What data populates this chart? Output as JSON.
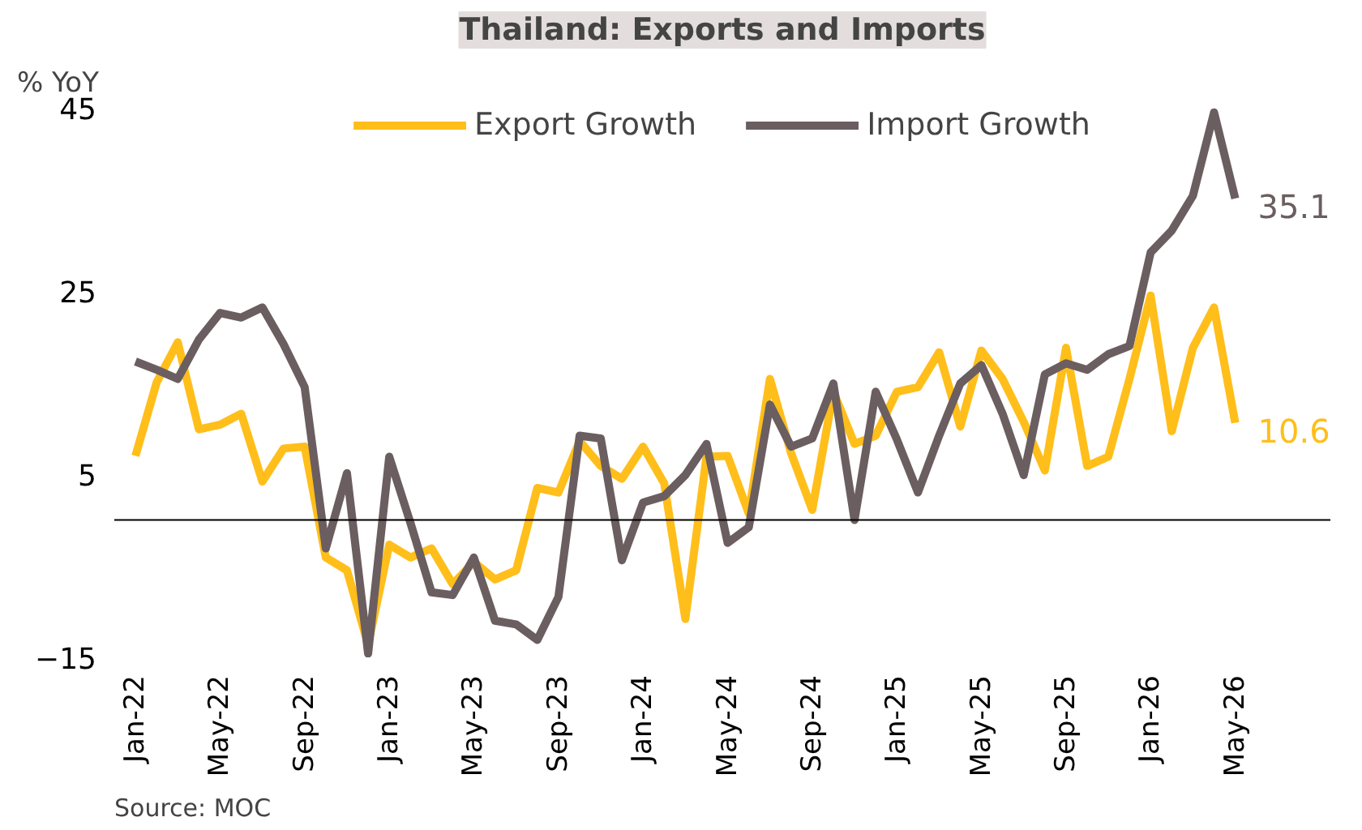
{
  "chart_data": {
    "type": "line",
    "title": "Thailand: Exports and Imports",
    "ylabel": "% YoY",
    "categories": [
      "Jan-22",
      null,
      null,
      null,
      "May-22",
      null,
      null,
      null,
      "Sep-22",
      null,
      null,
      null,
      "Jan-23",
      null,
      null,
      null,
      "May-23",
      null,
      null,
      null,
      "Sep-23",
      null,
      null,
      null,
      "Jan-24",
      null,
      null,
      null,
      "May-24",
      null,
      null,
      null,
      "Sep-24",
      null,
      null,
      null,
      "Jan-25",
      null,
      null,
      null,
      "May-25",
      null,
      null,
      null,
      "Sep-25",
      null,
      null,
      null,
      "Jan-26",
      null,
      null,
      null,
      "May-26"
    ],
    "series": [
      {
        "name": "Export Growth",
        "color": "#ffbe1a",
        "values": [
          7.0,
          15,
          19.4,
          9.9,
          10.4,
          11.6,
          4.2,
          7.8,
          8.0,
          -4.1,
          -5.5,
          -13.6,
          -2.7,
          -4.1,
          -3.1,
          -7.0,
          -4.6,
          -6.5,
          -5.5,
          3.5,
          3.0,
          8.6,
          5.9,
          4.5,
          8.0,
          4.0,
          -10.8,
          6.9,
          7.0,
          0.7,
          15.4,
          7.3,
          1.1,
          14,
          8.3,
          9.2,
          14.0,
          14.5,
          18.3,
          10.2,
          18.5,
          15.4,
          10.7,
          5.4,
          18.8,
          5.9,
          6.9,
          15.4,
          24.5,
          9.7,
          18.8,
          23.2,
          10.6
        ]
      },
      {
        "name": "Import Growth",
        "color": "#6b5e60",
        "values": [
          17.3,
          16.4,
          15.4,
          19.7,
          22.6,
          22.1,
          23.2,
          19.2,
          14.5,
          -3.1,
          5.1,
          -14.6,
          6.9,
          -0.3,
          -7.9,
          -8.2,
          -4.1,
          -11.0,
          -11.4,
          -13.1,
          -8.4,
          9.2,
          8.9,
          -4.4,
          1.9,
          2.6,
          4.9,
          8.3,
          -2.5,
          -0.8,
          12.6,
          8.0,
          8.9,
          14.9,
          0,
          14.0,
          8.8,
          3.0,
          9.2,
          14.9,
          16.9,
          11.6,
          4.9,
          15.9,
          17.1,
          16.4,
          18.1,
          19.0,
          29.2,
          31.6,
          35.4,
          44.5,
          35.1
        ]
      }
    ],
    "ylim": [
      -15,
      45
    ],
    "yticks": [
      -15,
      5,
      25,
      45
    ],
    "grid": false,
    "legend": "top",
    "ref_lines": [
      {
        "axis": "y",
        "value": 0,
        "color": "#000000"
      }
    ],
    "annotations": [
      {
        "text": "35.1",
        "x": "May-26",
        "y": 35.1
      },
      {
        "text": "10.6",
        "x": "May-26",
        "y": 10.6
      },
      "Source: MOC"
    ]
  }
}
